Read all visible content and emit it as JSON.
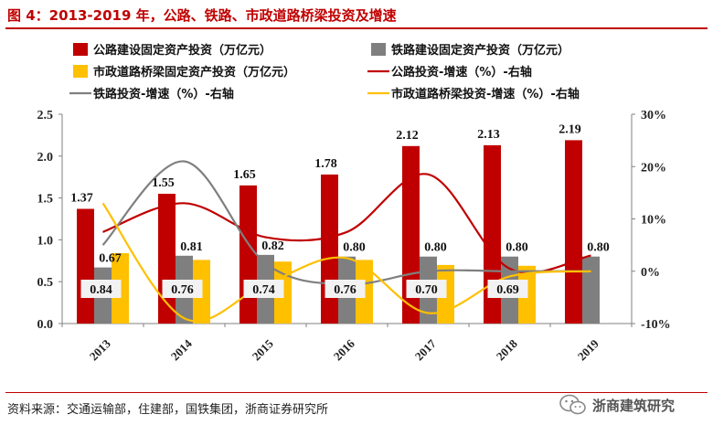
{
  "figure_title": "图 4：2013-2019 年，公路、铁路、市政道路桥梁投资及增速",
  "source_note": "资料来源：交通运输部，住建部，国铁集团，浙商证券研究所",
  "watermark": "浙商建筑研究",
  "chart_data": {
    "type": "bar",
    "categories": [
      "2013",
      "2014",
      "2015",
      "2016",
      "2017",
      "2018",
      "2019"
    ],
    "y_left": {
      "min": 0,
      "max": 2.5,
      "ticks": [
        "0.0",
        "0.5",
        "1.0",
        "1.5",
        "2.0",
        "2.5"
      ]
    },
    "y_right": {
      "min": -10,
      "max": 30,
      "ticks": [
        "-10%",
        "0%",
        "10%",
        "20%",
        "30%"
      ]
    },
    "bar_series": [
      {
        "name": "公路建设固定资产投资（万亿元）",
        "color": "#C00000",
        "values": [
          1.37,
          1.55,
          1.65,
          1.78,
          2.12,
          2.13,
          2.19
        ],
        "labels": [
          "1.37",
          "1.55",
          "1.65",
          "1.78",
          "2.12",
          "2.13",
          "2.19"
        ]
      },
      {
        "name": "铁路建设固定资产投资（万亿元）",
        "color": "#7F7F7F",
        "values": [
          0.67,
          0.81,
          0.82,
          0.8,
          0.8,
          0.8,
          0.8
        ],
        "labels": [
          "0.67",
          "0.81",
          "0.82",
          "0.80",
          "0.80",
          "0.80",
          "0.80"
        ]
      },
      {
        "name": "市政道路桥梁固定资产投资（万亿元）",
        "color": "#FFC000",
        "values": [
          0.84,
          0.76,
          0.74,
          0.76,
          0.7,
          0.69,
          null
        ],
        "labels": [
          "0.84",
          "0.76",
          "0.74",
          "0.76",
          "0.70",
          "0.69",
          ""
        ]
      }
    ],
    "line_series": [
      {
        "name": "公路投资-增速（%）-右轴",
        "color": "#C00000",
        "values": [
          7.5,
          13.0,
          6.5,
          7.5,
          18.5,
          0.5,
          3.0
        ]
      },
      {
        "name": "铁路投资-增速（%）-右轴",
        "color": "#7F7F7F",
        "values": [
          5.0,
          21.0,
          1.5,
          -2.5,
          0.0,
          0.0,
          0.0
        ]
      },
      {
        "name": "市政道路桥梁投资-增速（%）-右轴",
        "color": "#FFC000",
        "values": [
          13.0,
          -9.0,
          -2.5,
          2.5,
          -8.0,
          -1.0,
          0.0
        ]
      }
    ]
  }
}
